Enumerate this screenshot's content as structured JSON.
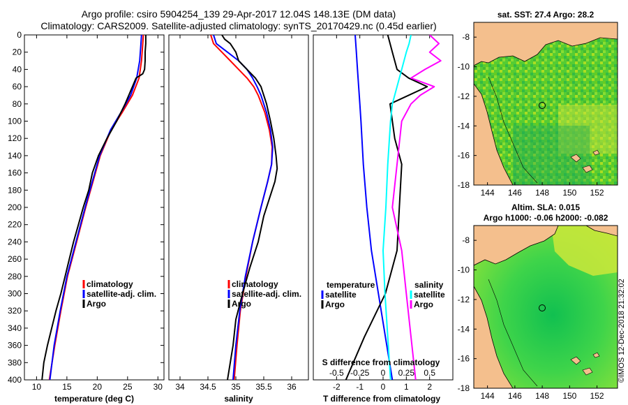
{
  "header": {
    "title_line1": "Argo profile: csiro 5904254_139 29-Apr-2017 12.04S 148.13E (DM data)",
    "title_line2": "Climatology: CARS2009. Satellite-adjusted climatology: synTS_20170429.nc (0.45d earlier)"
  },
  "colors": {
    "climatology": "#ff0000",
    "satellite": "#0000ff",
    "argo": "#000000",
    "sat_salinity": "#00ffff",
    "argo_salinity": "#ff00ff",
    "land": "#f4bf8d"
  },
  "depth_axis": {
    "ticks": [
      0,
      20,
      40,
      60,
      80,
      100,
      120,
      140,
      160,
      180,
      200,
      220,
      240,
      260,
      280,
      300,
      320,
      340,
      360,
      380,
      400
    ]
  },
  "chart_data": [
    {
      "type": "line",
      "id": "temperature",
      "xlabel": "temperature (deg C)",
      "ylabel": "depth",
      "xlim": [
        8,
        31
      ],
      "ylim": [
        400,
        0
      ],
      "xticks": [
        10,
        15,
        20,
        25,
        30
      ],
      "legend": [
        "climatology",
        "satellite-adj. clim.",
        "Argo"
      ],
      "series": [
        {
          "name": "climatology",
          "color": "#ff0000",
          "depth": [
            0,
            10,
            30,
            50,
            70,
            90,
            110,
            140,
            170,
            200,
            240,
            280,
            320,
            360,
            400
          ],
          "values": [
            27.6,
            27.5,
            27.3,
            26.9,
            25.8,
            24.1,
            22.3,
            20.5,
            19.3,
            18.1,
            16.6,
            15.1,
            14.0,
            13.0,
            12.1
          ]
        },
        {
          "name": "satellite-adj. clim.",
          "color": "#0000ff",
          "depth": [
            0,
            10,
            30,
            50,
            70,
            90,
            110,
            140,
            170,
            200,
            240,
            280,
            320,
            360,
            400
          ],
          "values": [
            27.3,
            27.2,
            27.0,
            26.5,
            25.5,
            23.9,
            22.2,
            20.4,
            19.2,
            18.0,
            16.5,
            15.0,
            13.9,
            12.9,
            12.2
          ]
        },
        {
          "name": "Argo",
          "color": "#000000",
          "depth": [
            0,
            10,
            20,
            30,
            40,
            45,
            50,
            60,
            70,
            80,
            100,
            120,
            140,
            160,
            180,
            200,
            220,
            240,
            260,
            280,
            300,
            320,
            340,
            360,
            380,
            400
          ],
          "values": [
            28.0,
            28.0,
            27.9,
            27.9,
            27.8,
            27.5,
            26.4,
            25.8,
            25.2,
            24.6,
            23.2,
            21.6,
            20.2,
            19.2,
            18.6,
            17.7,
            16.9,
            16.1,
            15.4,
            14.7,
            14.0,
            13.2,
            12.5,
            11.8,
            11.2,
            10.9
          ]
        }
      ]
    },
    {
      "type": "line",
      "id": "salinity",
      "xlabel": "salinity",
      "ylabel": "depth",
      "xlim": [
        33.8,
        36.3
      ],
      "ylim": [
        400,
        0
      ],
      "xticks": [
        34,
        34.5,
        35,
        35.5,
        36
      ],
      "xtick_labels": [
        "34",
        "34.5",
        "35",
        "35.5",
        "36"
      ],
      "legend": [
        "climatology",
        "satellite-adj. clim.",
        "Argo"
      ],
      "series": [
        {
          "name": "climatology",
          "color": "#ff0000",
          "depth": [
            0,
            10,
            20,
            30,
            40,
            50,
            60,
            70,
            90,
            110,
            130,
            150,
            170,
            200,
            240,
            280,
            320,
            360,
            400
          ],
          "values": [
            34.55,
            34.6,
            34.75,
            34.9,
            35.05,
            35.2,
            35.32,
            35.4,
            35.52,
            35.6,
            35.65,
            35.64,
            35.57,
            35.45,
            35.3,
            35.18,
            35.08,
            35.02,
            34.97
          ]
        },
        {
          "name": "satellite-adj. clim.",
          "color": "#0000ff",
          "depth": [
            0,
            10,
            20,
            30,
            40,
            50,
            60,
            70,
            90,
            110,
            130,
            150,
            170,
            200,
            240,
            280,
            320,
            360,
            400
          ],
          "values": [
            34.6,
            34.65,
            34.85,
            35.05,
            35.2,
            35.3,
            35.38,
            35.45,
            35.55,
            35.62,
            35.66,
            35.64,
            35.57,
            35.45,
            35.3,
            35.17,
            35.07,
            35.0,
            34.95
          ]
        },
        {
          "name": "Argo",
          "color": "#000000",
          "depth": [
            0,
            5,
            10,
            20,
            30,
            40,
            50,
            60,
            80,
            100,
            120,
            140,
            155,
            170,
            190,
            210,
            240,
            270,
            300,
            330,
            360,
            380,
            400
          ],
          "values": [
            34.75,
            34.8,
            34.9,
            35.0,
            35.05,
            35.2,
            35.35,
            35.45,
            35.55,
            35.62,
            35.68,
            35.72,
            35.74,
            35.7,
            35.6,
            35.5,
            35.4,
            35.25,
            35.12,
            35.0,
            34.95,
            34.9,
            34.85
          ]
        }
      ]
    },
    {
      "type": "line",
      "id": "difference",
      "xlabel": "T difference from climatology",
      "top_label": "S difference from climatology",
      "xlim": [
        -3,
        3
      ],
      "ylim": [
        400,
        0
      ],
      "xticks": [
        -2,
        -1,
        0,
        1,
        2
      ],
      "s_ticks": [
        -0.5,
        -0.25,
        0,
        0.25,
        0.5
      ],
      "s_tick_labels": [
        "-0.5",
        "-0.25",
        "0",
        "0.25",
        "0.5"
      ],
      "legend_temperature": {
        "title": "temperature",
        "items": [
          "satellite",
          "Argo"
        ]
      },
      "legend_salinity": {
        "title": "salinity",
        "items": [
          "satellite",
          "Argo"
        ]
      },
      "series": [
        {
          "name": "T satellite",
          "color": "#0000ff",
          "depth": [
            0,
            20,
            40,
            60,
            80,
            100,
            150,
            200,
            250,
            300,
            350,
            400
          ],
          "values": [
            -1.2,
            -1.15,
            -1.1,
            -1.05,
            -1.0,
            -0.95,
            -0.85,
            -0.7,
            -0.5,
            -0.2,
            0.1,
            0.4
          ]
        },
        {
          "name": "T Argo",
          "color": "#000000",
          "depth": [
            0,
            20,
            40,
            50,
            60,
            80,
            100,
            120,
            150,
            200,
            250,
            300,
            350,
            400
          ],
          "values": [
            0.2,
            0.4,
            0.6,
            1.1,
            1.9,
            0.3,
            0.4,
            0.5,
            0.8,
            0.7,
            0.6,
            0.1,
            -0.8,
            -1.6
          ]
        },
        {
          "name": "S satellite",
          "color": "#00ffff",
          "depth": [
            0,
            10,
            20,
            40,
            60,
            80,
            100,
            150,
            200,
            250,
            300,
            350,
            400
          ],
          "values": [
            0.3,
            0.28,
            0.25,
            0.2,
            0.15,
            0.1,
            0.08,
            0.05,
            0.03,
            0.0,
            0.02,
            0.05,
            0.08
          ]
        },
        {
          "name": "S Argo",
          "color": "#ff00ff",
          "depth": [
            0,
            10,
            20,
            30,
            40,
            50,
            60,
            70,
            80,
            100,
            150,
            200,
            250,
            300,
            350,
            400
          ],
          "values": [
            0.5,
            0.6,
            0.5,
            0.62,
            0.45,
            0.3,
            0.55,
            0.4,
            0.3,
            0.2,
            0.15,
            0.1,
            0.2,
            0.25,
            0.3,
            0.35
          ]
        }
      ]
    }
  ],
  "maps": {
    "sst": {
      "title": "sat. SST: 27.4 Argo: 28.2",
      "xticks": [
        "144",
        "146",
        "148",
        "150",
        "152"
      ],
      "yticks": [
        "-8",
        "-10",
        "-12",
        "-14",
        "-16",
        "-18"
      ]
    },
    "sla": {
      "title_line1": "Altim. SLA: 0.015",
      "title_line2": "Argo h1000: -0.06 h2000: -0.082",
      "xticks": [
        "144",
        "146",
        "148",
        "150",
        "152"
      ],
      "yticks": [
        "-8",
        "-10",
        "-12",
        "-14",
        "-16",
        "-18"
      ]
    }
  },
  "watermark": "©IMOS 12-Dec-2018 21:32:02"
}
